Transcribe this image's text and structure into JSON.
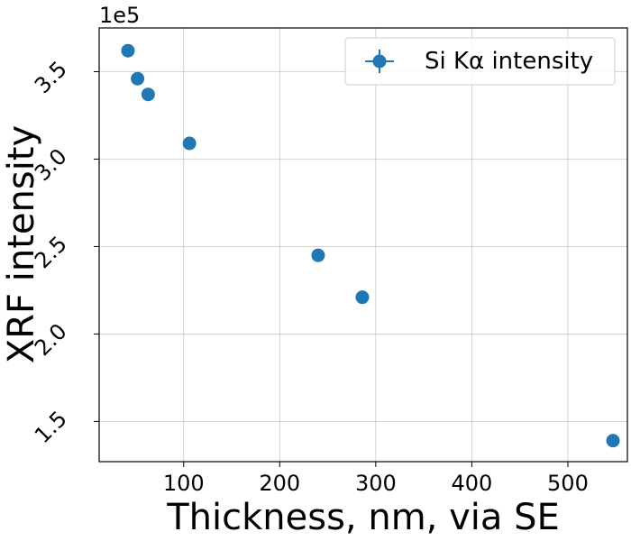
{
  "chart_data": {
    "type": "scatter",
    "xlabel": "Thickness, nm, via SE",
    "ylabel": "XRF intensity",
    "y_offset_label": "1e5",
    "xlim": [
      12,
      562
    ],
    "ylim": [
      1.27,
      3.75
    ],
    "x_ticks": [
      100,
      200,
      300,
      400,
      500
    ],
    "x_tick_labels": [
      "100",
      "200",
      "300",
      "400",
      "500"
    ],
    "y_ticks": [
      1.5,
      2.0,
      2.5,
      3.0,
      3.5
    ],
    "y_tick_labels": [
      "1.5",
      "2.0",
      "2.5",
      "3.0",
      "3.5"
    ],
    "grid": true,
    "legend_position": "top-right",
    "series": [
      {
        "name": "Si Kα intensity",
        "color": "#1f77b4",
        "marker": "circle",
        "points": [
          {
            "x": 42,
            "y": 3.62
          },
          {
            "x": 52,
            "y": 3.46
          },
          {
            "x": 63,
            "y": 3.37
          },
          {
            "x": 106,
            "y": 3.09
          },
          {
            "x": 240,
            "y": 2.45
          },
          {
            "x": 286,
            "y": 2.21
          },
          {
            "x": 547,
            "y": 1.39
          }
        ]
      }
    ]
  }
}
